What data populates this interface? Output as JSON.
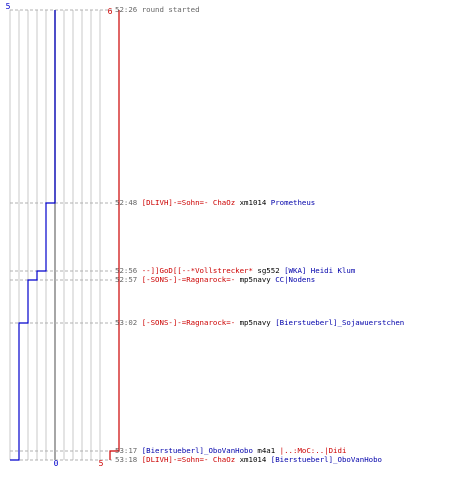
{
  "chart_data": {
    "type": "step",
    "title": "",
    "series": [
      {
        "name": "",
        "color": "#0000cc",
        "points": [
          {
            "time": "52:26",
            "value": 5
          },
          {
            "time": "52:48",
            "value": 4
          },
          {
            "time": "52:56",
            "value": 3
          },
          {
            "time": "52:57",
            "value": 2
          },
          {
            "time": "53:02",
            "value": 1
          },
          {
            "time": "53:18",
            "value": 0
          }
        ]
      },
      {
        "name": "",
        "color": "#cc0000",
        "points": [
          {
            "time": "52:26",
            "value": 6
          },
          {
            "time": "53:17",
            "value": 5
          }
        ]
      }
    ],
    "top_labels": {
      "left": "5",
      "right": "6"
    },
    "bottom_labels": {
      "left": "0",
      "right": "5"
    },
    "value_range": [
      0,
      6
    ],
    "grid": true
  },
  "events": [
    {
      "time": "52:26",
      "parts": [
        {
          "text": "round started",
          "color": "#666666"
        }
      ]
    },
    {
      "time": "52:48",
      "parts": [
        {
          "text": "[DLIVH]-=Sohn=- ChaOz",
          "color": "#cc0000"
        },
        {
          "text": " xm1014 ",
          "color": "#000000"
        },
        {
          "text": "Prometheus",
          "color": "#0000aa"
        }
      ]
    },
    {
      "time": "52:56",
      "parts": [
        {
          "text": "--]]GoD[[--*Vollstrecker*",
          "color": "#cc0000"
        },
        {
          "text": " sg552 ",
          "color": "#000000"
        },
        {
          "text": "[WKA] Heidi Klum",
          "color": "#0000aa"
        }
      ]
    },
    {
      "time": "52:57",
      "parts": [
        {
          "text": "[-SONS-]-=Ragnarock=-",
          "color": "#cc0000"
        },
        {
          "text": " mp5navy ",
          "color": "#000000"
        },
        {
          "text": "CC|Nodens",
          "color": "#0000aa"
        }
      ]
    },
    {
      "time": "53:02",
      "parts": [
        {
          "text": "[-SONS-]-=Ragnarock=-",
          "color": "#cc0000"
        },
        {
          "text": " mp5navy ",
          "color": "#000000"
        },
        {
          "text": "[Bierstueberl]_Sojawuerstchen",
          "color": "#0000aa"
        }
      ]
    },
    {
      "time": "53:17",
      "parts": [
        {
          "text": "[Bierstueberl]_OboVanHobo",
          "color": "#0000aa"
        },
        {
          "text": " m4a1 ",
          "color": "#000000"
        },
        {
          "text": "|..:MoC:..|Didi",
          "color": "#cc0000"
        }
      ]
    },
    {
      "time": "53:18",
      "parts": [
        {
          "text": "[DLIVH]-=Sohn=- ChaOz",
          "color": "#cc0000"
        },
        {
          "text": " xm1014 ",
          "color": "#000000"
        },
        {
          "text": "[Bierstueberl]_OboVanHobo",
          "color": "#0000aa"
        }
      ]
    }
  ]
}
